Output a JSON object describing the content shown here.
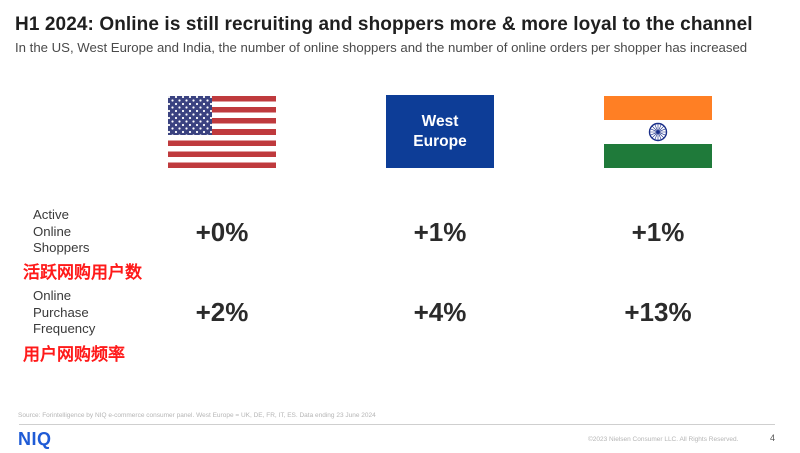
{
  "header": {
    "title": "H1 2024: Online is still recruiting and shoppers more & more loyal to the channel",
    "subtitle": "In the US, West Europe and India, the number of online shoppers and the number of online orders per shopper has increased"
  },
  "columns": {
    "us": {
      "flag_icon": "us-flag-icon"
    },
    "west_europe": {
      "label_line1": "West",
      "label_line2": "Europe"
    },
    "india": {
      "flag_icon": "india-flag-icon"
    }
  },
  "rows": {
    "active_shoppers": {
      "label_line1": "Active",
      "label_line2": "Online",
      "label_line3": "Shoppers",
      "cn_label": "活跃网购用户数",
      "values": {
        "us": "+0%",
        "west_europe": "+1%",
        "india": "+1%"
      }
    },
    "purchase_frequency": {
      "label_line1": "Online",
      "label_line2": "Purchase",
      "label_line3": "Frequency",
      "cn_label": "用户网购频率",
      "values": {
        "us": "+2%",
        "west_europe": "+4%",
        "india": "+13%"
      }
    }
  },
  "footer": {
    "source": "Source: Forintelligence by NIQ e-commerce consumer panel. West Europe = UK, DE, FR, IT, ES. Data ending 23 June 2024",
    "logo": "NIQ",
    "copyright": "©2023 Nielsen Consumer LLC. All Rights Reserved.",
    "page_number": "4"
  },
  "colors": {
    "accent_red": "#ff1a1a",
    "logo_blue": "#1f5bd6",
    "eu_blue": "#0d3d97"
  }
}
